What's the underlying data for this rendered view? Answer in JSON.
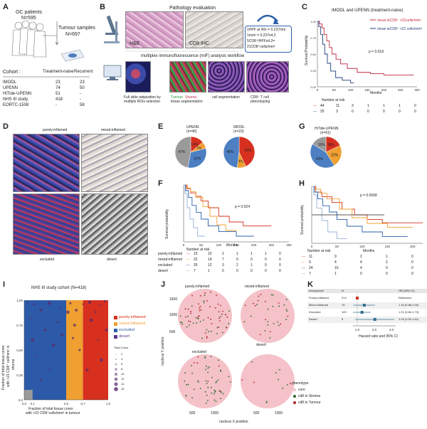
{
  "panels": {
    "a": "A",
    "b": "B",
    "c": "C",
    "d": "D",
    "e": "E",
    "f": "F",
    "g": "G",
    "h": "H",
    "i": "I",
    "j": "J",
    "k": "K"
  },
  "panel_a": {
    "patients": "OC patients",
    "patients_n": "N=595",
    "tumour_samples": "Tumour samples",
    "tumour_n": "N=697",
    "cohort_label": "Cohort :",
    "col_naive": "Treatment-naive",
    "col_recurrent": "Recurrent",
    "rows": [
      {
        "name": "IMODL",
        "naive": "23",
        "recurrent": "23"
      },
      {
        "name": "UPENN",
        "naive": "74",
        "recurrent": "50"
      },
      {
        "name": "HiTide-UPENN",
        "naive": "51",
        "recurrent": "-"
      },
      {
        "name": "NHS III study",
        "naive": "418",
        "recurrent": "-"
      },
      {
        "name": "EORTC-1508",
        "naive": "-",
        "recurrent": "58"
      }
    ]
  },
  "panel_b": {
    "title": "Pathology evaluation",
    "he": "H&E",
    "cd8": "CD8 IHC",
    "calc": [
      "1HPF at 40x = 0.237mm",
      "1mm² = 0.237x4.2",
      "5CD8⁺/HPFx4.2=",
      "21CD8⁺cells/mm²"
    ],
    "workflow": "multiplex immunofluorescence (mIF) analysis workflow",
    "step1": [
      "Full slide adquisition by",
      "multiple ROIs selection"
    ],
    "step2_a": "Tumour",
    "step2_b": "Stroma",
    "step2_c": "tissue segmentation",
    "step3": "cell segmentation",
    "step4": [
      "CD8⁺ T cell",
      "phenotyping"
    ]
  },
  "panel_c": {
    "title": "IMODL and UPENN (treatment-naive)",
    "ylabel": "Survival Probability",
    "xlabel": "Months",
    "legend_hi": "mean ieCD8⁺ >21cells/mm²",
    "legend_lo": "mean ieCD8⁺ <21 cells/mm²",
    "pvalue": "p = 0.018",
    "at_risk": "Number at risk",
    "risk_hi": [
      "44",
      "11",
      "3",
      "1",
      "1",
      "1",
      "0"
    ],
    "risk_lo": [
      "25",
      "3",
      "0",
      "0",
      "0",
      "0",
      "0"
    ]
  },
  "panel_d": {
    "purely": "purely-inflamed",
    "mixed": "mixed-inflamed",
    "excluded": "excluded",
    "desert": "desert"
  },
  "panel_e": {
    "upenn": "UPENN",
    "upenn_n": "(n=46)",
    "imodl": "IMODL",
    "imodl_n": "(n=23)",
    "upenn_slices": [
      "47%",
      "14%",
      "7%",
      "32%"
    ],
    "imodl_slices": [
      "48%",
      "43%",
      "9%"
    ]
  },
  "panel_g": {
    "title": "HiTide-UPENN",
    "n": "(n=51)",
    "slices": [
      "16%",
      "18%",
      "23%",
      "43%"
    ]
  },
  "panel_f": {
    "pvalue": "p = 0.024",
    "ylabel": "Survival probability",
    "xlabel": "Months",
    "ticks": [
      "0",
      "50",
      "100",
      "150",
      "200",
      "250",
      "300"
    ],
    "at_risk": "Number at risk",
    "rows": [
      {
        "name": "purely-inflamed",
        "vals": [
          "15",
          "10",
          "2",
          "1",
          "1",
          "1",
          "0"
        ]
      },
      {
        "name": "mixed-inflamed",
        "vals": [
          "22",
          "14",
          "7",
          "0",
          "0",
          "0",
          "0"
        ]
      },
      {
        "name": "excluded",
        "vals": [
          "25",
          "12",
          "3",
          "2",
          "1",
          "0",
          "0"
        ]
      },
      {
        "name": "desert",
        "vals": [
          "7",
          "1",
          "0",
          "0",
          "0",
          "0",
          "0"
        ]
      }
    ]
  },
  "panel_h": {
    "pvalue": "p = 0.0068",
    "ylabel": "Survival probability",
    "xlabel": "Months",
    "ticks": [
      "0",
      "50",
      "100",
      "150",
      "200"
    ],
    "at_risk": "Number at risk",
    "rows": [
      {
        "vals": [
          "11",
          "9",
          "2",
          "1",
          "0"
        ]
      },
      {
        "vals": [
          "9",
          "4",
          "4",
          "2",
          "0"
        ]
      },
      {
        "vals": [
          "24",
          "10",
          "4",
          "0",
          "0"
        ]
      },
      {
        "vals": [
          "7",
          "1",
          "0",
          "0",
          "0"
        ]
      }
    ]
  },
  "panel_i": {
    "title": "NHS III study cohort (N=418)",
    "ylabel": [
      "Fraction of total tissue cores",
      "with >21 CD8⁺ cell/mm² in",
      "stroma"
    ],
    "xlabel": [
      "Fraction of total tissue cores",
      "with >21 CD8⁺cells/mm² in tumour"
    ],
    "legend": [
      "purely-inflamed",
      "mixed-inflamed",
      "excluded",
      "desert"
    ],
    "cores_title": "Total Cores",
    "cores": [
      "2",
      "4",
      "6",
      "8",
      "10",
      "12",
      "14",
      "16"
    ],
    "yticks": [
      "1,00",
      "0,75",
      "0,50",
      "0,25",
      "0,0"
    ],
    "xticks": [
      "0,0",
      "0,1",
      "0,5",
      "0,7",
      "1,0"
    ]
  },
  "panel_j": {
    "purely": "purely-inflamed",
    "mixed": "mixed-inflamed",
    "excluded": "excluded",
    "desert": "desert",
    "ylabel": "nucleus Y position",
    "xlabel": "nucleus X position",
    "ticks_y": [
      "1500",
      "1000",
      "500"
    ],
    "ticks_x": [
      "500",
      "1000",
      "500",
      "1000"
    ],
    "phenotype": "phenotype",
    "legend": [
      "core",
      "cd8 in Stroma",
      "cd8 in Tumour"
    ]
  },
  "panel_k": {
    "head_name": "Immunocell",
    "head_n": "N",
    "head_hr": "HR (95% CI)",
    "rows": [
      {
        "name": "Purely-inflamed",
        "n": "214",
        "hr": "Reference"
      },
      {
        "name": "Mixed-inflamed",
        "n": "76",
        "hr": "1.33 (0.86-2.05)"
      },
      {
        "name": "Excluded",
        "n": "120",
        "hr": "1.21 (0.84-1.73)"
      },
      {
        "name": "Desert",
        "n": "8",
        "hr": "2.04 (0.92-4.51)"
      }
    ],
    "xticks": [
      "1.0",
      "2.0",
      "4.0"
    ],
    "xlabel": "Hazard ratio and 95% CI"
  },
  "colors": {
    "purely": "#d7301f",
    "mixed": "#f0a030",
    "excluded": "#2b5fa8",
    "desert": "#999999",
    "hi": "#c0293f",
    "lo": "#1f3f78"
  }
}
